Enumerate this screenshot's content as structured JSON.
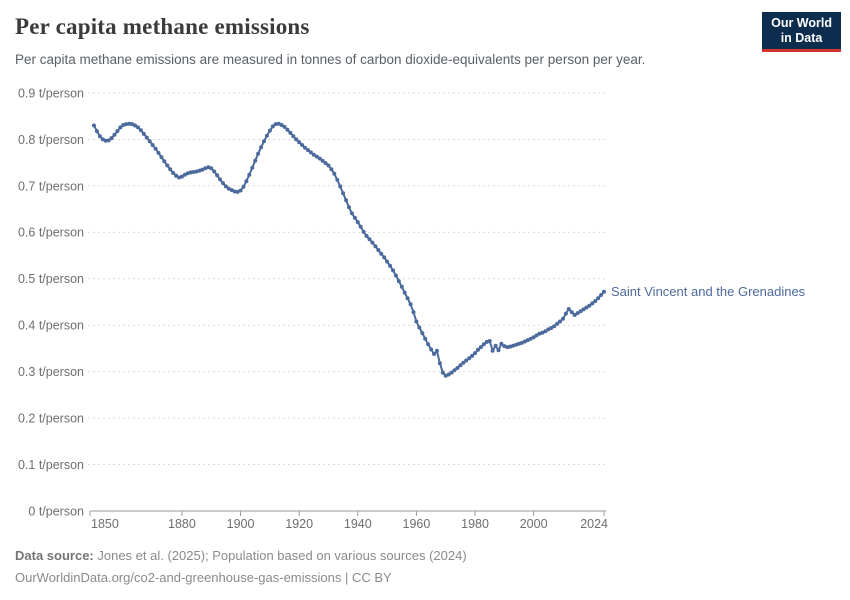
{
  "header": {
    "title": "Per capita methane emissions",
    "subtitle": "Per capita methane emissions are measured in tonnes of carbon dioxide-equivalents per person per year."
  },
  "logo": {
    "line1": "Our World",
    "line2": "in Data"
  },
  "footer": {
    "source_label": "Data source:",
    "source_text": " Jones et al. (2025); Population based on various sources (2024)",
    "citation_line": "OurWorldinData.org/co2-and-greenhouse-gas-emissions | CC BY"
  },
  "chart_data": {
    "type": "line",
    "title": "Per capita methane emissions",
    "unit": "t/person",
    "years": {
      "start": 1850,
      "end": 2024,
      "step": 1
    },
    "series": [
      {
        "name": "Saint Vincent and the Grenadines",
        "values": [
          0.83,
          0.818,
          0.807,
          0.8,
          0.797,
          0.798,
          0.803,
          0.81,
          0.818,
          0.826,
          0.831,
          0.833,
          0.834,
          0.833,
          0.83,
          0.826,
          0.82,
          0.812,
          0.804,
          0.796,
          0.788,
          0.78,
          0.771,
          0.762,
          0.753,
          0.744,
          0.736,
          0.728,
          0.722,
          0.718,
          0.72,
          0.724,
          0.727,
          0.729,
          0.73,
          0.731,
          0.733,
          0.735,
          0.738,
          0.74,
          0.738,
          0.731,
          0.723,
          0.714,
          0.706,
          0.699,
          0.694,
          0.691,
          0.688,
          0.687,
          0.69,
          0.698,
          0.71,
          0.724,
          0.739,
          0.754,
          0.769,
          0.783,
          0.796,
          0.808,
          0.819,
          0.828,
          0.833,
          0.834,
          0.831,
          0.827,
          0.821,
          0.814,
          0.807,
          0.8,
          0.794,
          0.788,
          0.782,
          0.777,
          0.772,
          0.767,
          0.763,
          0.759,
          0.754,
          0.749,
          0.744,
          0.736,
          0.726,
          0.713,
          0.699,
          0.684,
          0.669,
          0.654,
          0.641,
          0.631,
          0.622,
          0.612,
          0.601,
          0.592,
          0.585,
          0.578,
          0.57,
          0.562,
          0.554,
          0.546,
          0.537,
          0.528,
          0.518,
          0.507,
          0.495,
          0.483,
          0.47,
          0.458,
          0.445,
          0.428,
          0.408,
          0.395,
          0.383,
          0.371,
          0.359,
          0.348,
          0.338,
          0.345,
          0.318,
          0.298,
          0.291,
          0.294,
          0.298,
          0.303,
          0.308,
          0.314,
          0.319,
          0.324,
          0.329,
          0.334,
          0.34,
          0.347,
          0.353,
          0.359,
          0.364,
          0.366,
          0.345,
          0.356,
          0.346,
          0.36,
          0.355,
          0.353,
          0.354,
          0.356,
          0.358,
          0.36,
          0.362,
          0.365,
          0.368,
          0.371,
          0.374,
          0.378,
          0.382,
          0.384,
          0.387,
          0.391,
          0.394,
          0.398,
          0.403,
          0.408,
          0.414,
          0.425,
          0.435,
          0.428,
          0.422,
          0.426,
          0.43,
          0.434,
          0.438,
          0.442,
          0.447,
          0.452,
          0.458,
          0.465,
          0.472
        ]
      }
    ],
    "xlim": [
      1850,
      2024
    ],
    "ylim": [
      0,
      0.9
    ],
    "x_ticks": [
      1850,
      1880,
      1900,
      1920,
      1940,
      1960,
      1980,
      2000,
      2024
    ],
    "y_ticks": [
      {
        "value": 0.0,
        "label": "0 t/person"
      },
      {
        "value": 0.1,
        "label": "0.1 t/person"
      },
      {
        "value": 0.2,
        "label": "0.2 t/person"
      },
      {
        "value": 0.3,
        "label": "0.3 t/person"
      },
      {
        "value": 0.4,
        "label": "0.4 t/person"
      },
      {
        "value": 0.5,
        "label": "0.5 t/person"
      },
      {
        "value": 0.6,
        "label": "0.6 t/person"
      },
      {
        "value": 0.7,
        "label": "0.7 t/person"
      },
      {
        "value": 0.8,
        "label": "0.8 t/person"
      },
      {
        "value": 0.9,
        "label": "0.9 t/person"
      }
    ],
    "grid": "horizontal-dashed",
    "legend": "end-of-line-label",
    "colors": {
      "line": "#4c6a9c",
      "end_label": "#4c6a9c",
      "grid": "#dbdbdb",
      "axis": "#9a9a9a",
      "tick_text": "#6f6f6f"
    }
  }
}
